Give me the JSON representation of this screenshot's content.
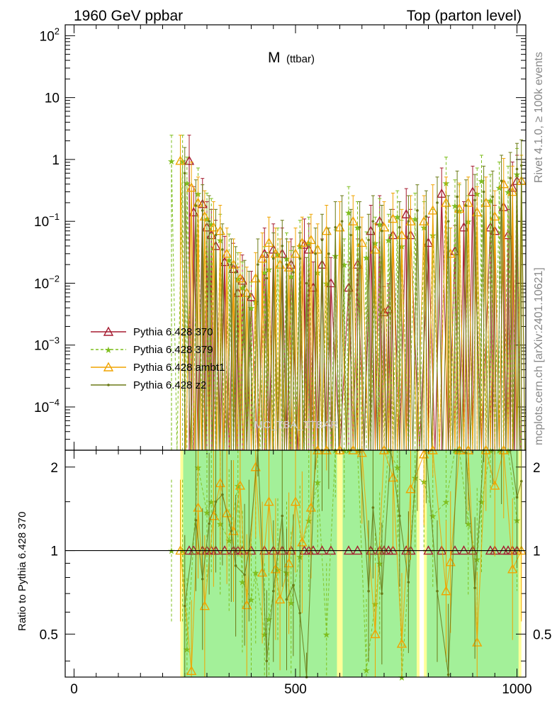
{
  "header": {
    "left": "1960 GeV ppbar",
    "right": "Top (parton level)"
  },
  "side_labels": {
    "version": "Rivet 4.1.0, ≥ 100k events",
    "site": "mcplots.cern.ch [arXiv:2401.10621]"
  },
  "chart_data": {
    "type": "line",
    "title_main": "M",
    "title_sub": "(ttbar)",
    "watermark": "MC_TBA_TTBAR",
    "xlabel": "",
    "xlim": [
      -20,
      1020
    ],
    "xticks": [
      "0",
      "500",
      "1000"
    ],
    "top_panel": {
      "yscale": "log",
      "ylim": [
        2e-05,
        150
      ],
      "yticks": [
        "10^-4",
        "10^-3",
        "10^-2",
        "10^-1",
        "1",
        "10",
        "10^2"
      ]
    },
    "ratio_panel": {
      "ylabel": "Ratio to Pythia 6.428 370",
      "ylim": [
        0.35,
        2.3
      ],
      "yticks": [
        "0.5",
        "1",
        "2"
      ],
      "reference_line": 1
    },
    "legend": {
      "placement": "center-left",
      "entries": [
        "Pythia 6.428 370",
        "Pythia 6.428 379",
        "Pythia 6.428 ambt1",
        "Pythia 6.428 z2"
      ]
    },
    "series": [
      {
        "name": "Pythia 6.428 370",
        "color": "#a51c30",
        "marker": "open-triangle",
        "dash": "solid",
        "points": [
          [
            260,
            0.95
          ],
          [
            270,
            0.14
          ],
          [
            290,
            0.19
          ],
          [
            300,
            0.08
          ],
          [
            310,
            0.06
          ],
          [
            320,
            0.04
          ],
          [
            340,
            0.022
          ],
          [
            360,
            0.017
          ],
          [
            370,
            0.007
          ],
          [
            380,
            0.011
          ],
          [
            400,
            0.006
          ],
          [
            430,
            0.03
          ],
          [
            450,
            0.035
          ],
          [
            470,
            0.03
          ],
          [
            490,
            0.02
          ],
          [
            520,
            0.042
          ],
          [
            530,
            0.035
          ],
          [
            540,
            0.0085
          ],
          [
            560,
            0.02
          ],
          [
            580,
            0.01
          ],
          [
            620,
            0.0085
          ],
          [
            640,
            0.02
          ],
          [
            670,
            0.07
          ],
          [
            690,
            0.1
          ],
          [
            700,
            0.0034
          ],
          [
            710,
            0.0038
          ],
          [
            720,
            0.06
          ],
          [
            750,
            0.13
          ],
          [
            760,
            0.06
          ],
          [
            800,
            0.045
          ],
          [
            830,
            0.28
          ],
          [
            860,
            0.033
          ],
          [
            880,
            0.08
          ],
          [
            900,
            0.3
          ],
          [
            940,
            0.08
          ],
          [
            950,
            0.07
          ],
          [
            970,
            0.17
          ],
          [
            980,
            0.06
          ],
          [
            990,
            0.35
          ],
          [
            1000,
            0.45
          ]
        ]
      },
      {
        "name": "Pythia 6.428 379",
        "color": "#7fbf1f",
        "marker": "star",
        "dash": "dashed",
        "points": [
          [
            220,
            0.95
          ],
          [
            245,
            0.95
          ],
          [
            255,
            0.42
          ],
          [
            280,
            0.28
          ],
          [
            300,
            0.11
          ],
          [
            310,
            0.09
          ],
          [
            330,
            0.05
          ],
          [
            350,
            0.024
          ],
          [
            370,
            0.012
          ],
          [
            380,
            0.0085
          ],
          [
            400,
            0.004
          ],
          [
            410,
            0.005
          ],
          [
            430,
            0.015
          ],
          [
            440,
            0.017
          ],
          [
            460,
            0.03
          ],
          [
            480,
            0.025
          ],
          [
            490,
            0.013
          ],
          [
            510,
            0.04
          ],
          [
            530,
            0.045
          ],
          [
            550,
            0.015
          ],
          [
            570,
            0.01
          ],
          [
            590,
            0.028
          ],
          [
            610,
            0.02
          ],
          [
            620,
            0.14
          ],
          [
            640,
            0.08
          ],
          [
            660,
            0.026
          ],
          [
            680,
            0.045
          ],
          [
            690,
            0.09
          ],
          [
            710,
            0.05
          ],
          [
            730,
            0.12
          ],
          [
            740,
            0.04
          ],
          [
            770,
            0.11
          ],
          [
            790,
            0.08
          ],
          [
            810,
            0.06
          ],
          [
            840,
            0.42
          ],
          [
            860,
            0.18
          ],
          [
            870,
            0.15
          ],
          [
            890,
            0.1
          ],
          [
            910,
            0.28
          ],
          [
            920,
            0.45
          ],
          [
            940,
            0.22
          ],
          [
            960,
            0.35
          ],
          [
            980,
            0.3
          ],
          [
            1000,
            0.58
          ]
        ]
      },
      {
        "name": "Pythia 6.428 ambt1",
        "color": "#f0a400",
        "marker": "open-triangle",
        "dash": "solid",
        "points": [
          [
            240,
            0.95
          ],
          [
            265,
            0.35
          ],
          [
            280,
            0.2
          ],
          [
            295,
            0.12
          ],
          [
            315,
            0.08
          ],
          [
            330,
            0.07
          ],
          [
            345,
            0.03
          ],
          [
            360,
            0.02
          ],
          [
            375,
            0.012
          ],
          [
            390,
            0.007
          ],
          [
            410,
            0.012
          ],
          [
            425,
            0.025
          ],
          [
            440,
            0.045
          ],
          [
            455,
            0.03
          ],
          [
            465,
            0.02
          ],
          [
            485,
            0.018
          ],
          [
            500,
            0.03
          ],
          [
            515,
            0.045
          ],
          [
            535,
            0.05
          ],
          [
            550,
            0.035
          ],
          [
            570,
            0.07
          ],
          [
            600,
            0.08
          ],
          [
            630,
            0.1
          ],
          [
            650,
            0.045
          ],
          [
            680,
            0.035
          ],
          [
            700,
            0.08
          ],
          [
            720,
            0.11
          ],
          [
            740,
            0.06
          ],
          [
            760,
            0.1
          ],
          [
            790,
            0.1
          ],
          [
            810,
            0.15
          ],
          [
            840,
            0.2
          ],
          [
            850,
            0.03
          ],
          [
            870,
            0.16
          ],
          [
            890,
            0.2
          ],
          [
            910,
            0.14
          ],
          [
            930,
            0.2
          ],
          [
            950,
            0.12
          ],
          [
            970,
            0.4
          ],
          [
            990,
            0.3
          ],
          [
            1010,
            0.45
          ]
        ]
      },
      {
        "name": "Pythia 6.428 z2",
        "color": "#6b7a16",
        "marker": "dot",
        "dash": "solid",
        "points": [
          [
            250,
            0.6
          ],
          [
            275,
            0.18
          ],
          [
            290,
            0.15
          ],
          [
            305,
            0.1
          ],
          [
            320,
            0.06
          ],
          [
            335,
            0.035
          ],
          [
            355,
            0.02
          ],
          [
            365,
            0.015
          ],
          [
            385,
            0.009
          ],
          [
            395,
            0.006
          ],
          [
            415,
            0.02
          ],
          [
            435,
            0.012
          ],
          [
            450,
            0.025
          ],
          [
            470,
            0.04
          ],
          [
            480,
            0.02
          ],
          [
            495,
            0.015
          ],
          [
            510,
            0.025
          ],
          [
            525,
            0.01
          ],
          [
            545,
            0.03
          ],
          [
            560,
            0.05
          ],
          [
            575,
            0.03
          ],
          [
            590,
            0.08
          ],
          [
            605,
            0.1
          ],
          [
            625,
            0.06
          ],
          [
            645,
            0.08
          ],
          [
            665,
            0.05
          ],
          [
            675,
            0.1
          ],
          [
            695,
            0.07
          ],
          [
            715,
            0.06
          ],
          [
            735,
            0.08
          ],
          [
            755,
            0.1
          ],
          [
            775,
            0.15
          ],
          [
            795,
            0.12
          ],
          [
            820,
            0.2
          ],
          [
            845,
            0.1
          ],
          [
            865,
            0.25
          ],
          [
            885,
            0.18
          ],
          [
            905,
            0.22
          ],
          [
            925,
            0.3
          ],
          [
            945,
            0.25
          ],
          [
            965,
            0.45
          ],
          [
            985,
            0.5
          ],
          [
            1000,
            0.7
          ],
          [
            1010,
            0.8
          ]
        ]
      }
    ],
    "uncertainty_bands": {
      "colors": [
        "#ffff99",
        "#99ee99"
      ],
      "x_ranges": [
        [
          240,
          600
        ],
        [
          600,
          780
        ],
        [
          790,
          1010
        ]
      ]
    }
  }
}
